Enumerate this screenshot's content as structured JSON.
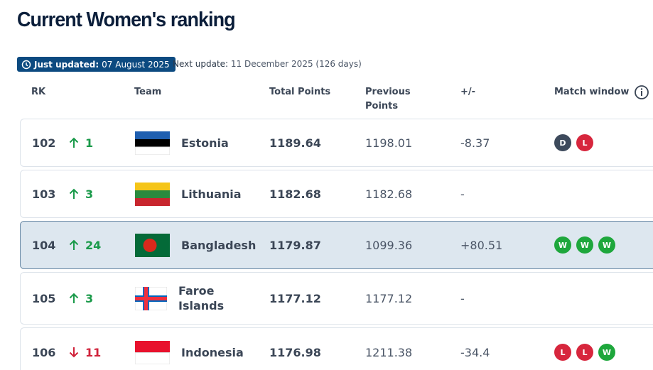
{
  "header": {
    "title": "Current Women's ranking",
    "updated_label": "Just updated:",
    "updated_date": "07 August 2025",
    "next_label": "Next update:",
    "next_date": "11 December 2025 (126 days)"
  },
  "table": {
    "columns": [
      "RK",
      "Team",
      "Total Points",
      "Previous Points",
      "+/-",
      "Match window"
    ],
    "rows": [
      {
        "rank": 102,
        "trend": "up",
        "move": 1,
        "team": "Estonia",
        "total": 1189.64,
        "previous": 1198.01,
        "diff": -8.37,
        "results": [
          "D",
          "L"
        ]
      },
      {
        "rank": 103,
        "trend": "up",
        "move": 3,
        "team": "Lithuania",
        "total": 1182.68,
        "previous": 1182.68,
        "diff": "-",
        "results": []
      },
      {
        "rank": 104,
        "trend": "up",
        "move": 24,
        "team": "Bangladesh",
        "total": 1179.87,
        "previous": 1099.36,
        "diff": "+80.51",
        "results": [
          "W",
          "W",
          "W"
        ]
      },
      {
        "rank": 105,
        "trend": "up",
        "move": 3,
        "team": "Faroe Islands",
        "total": 1177.12,
        "previous": 1177.12,
        "diff": "-",
        "results": []
      },
      {
        "rank": 106,
        "trend": "down",
        "move": 11,
        "team": "Indonesia",
        "total": 1176.98,
        "previous": 1211.38,
        "diff": -34.4,
        "results": [
          "L",
          "L",
          "W"
        ]
      }
    ]
  }
}
